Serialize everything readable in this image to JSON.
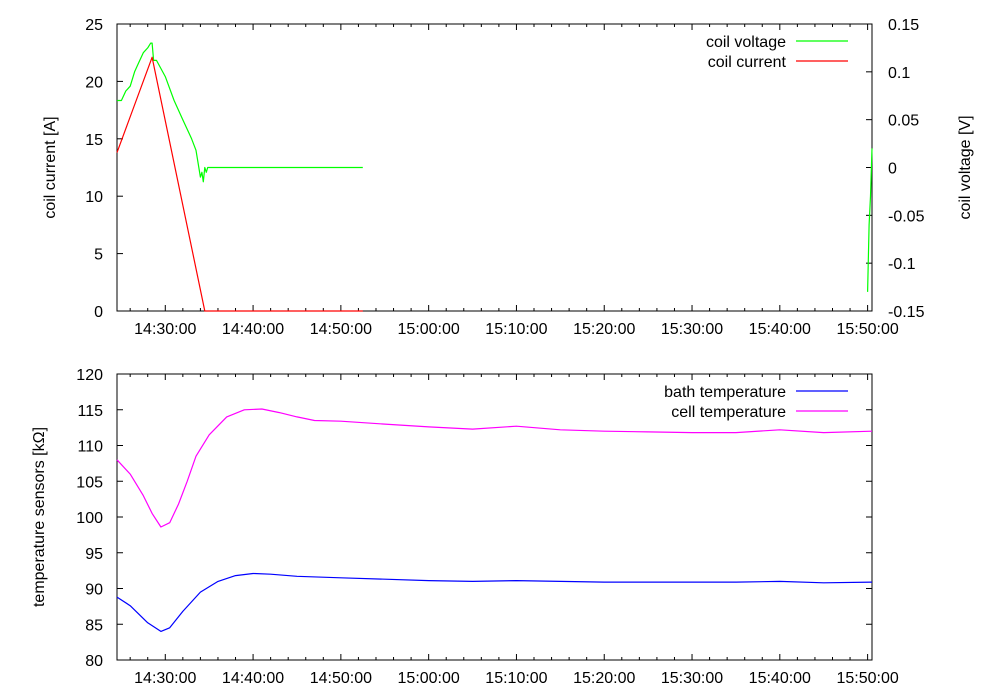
{
  "chart_data": [
    {
      "type": "line",
      "x_ticks": [
        "14:30:00",
        "14:40:00",
        "14:50:00",
        "15:00:00",
        "15:10:00",
        "15:20:00",
        "15:30:00",
        "15:40:00",
        "15:50:00"
      ],
      "xlim": [
        "14:24:30",
        "15:50:30"
      ],
      "ylabel": "coil current [A]",
      "ylim": [
        0,
        25
      ],
      "y_ticks": [
        0,
        5,
        10,
        15,
        20,
        25
      ],
      "y2label": "coil voltage [V]",
      "y2lim": [
        -0.15,
        0.15
      ],
      "y2_ticks": [
        "-0.15",
        "-0.1",
        "-0.05",
        "0",
        "0.05",
        "0.1",
        "0.15"
      ],
      "legend_position": "top-right",
      "series": [
        {
          "name": "coil voltage",
          "axis": "right",
          "color": "#00ff00",
          "x": [
            "14:24:30",
            "14:25:00",
            "14:25:30",
            "14:26:00",
            "14:26:30",
            "14:27:00",
            "14:27:30",
            "14:28:00",
            "14:28:20",
            "14:28:30",
            "14:28:40",
            "14:29:00",
            "14:30:00",
            "14:31:00",
            "14:32:00",
            "14:33:00",
            "14:33:30",
            "14:34:00",
            "14:34:10",
            "14:34:20",
            "14:34:30",
            "14:34:40",
            "14:34:50",
            "14:35:00",
            "14:45:00",
            "14:52:30"
          ],
          "y": [
            0.07,
            0.07,
            0.08,
            0.085,
            0.1,
            0.11,
            0.12,
            0.125,
            0.13,
            0.13,
            0.112,
            0.112,
            0.095,
            0.07,
            0.05,
            0.03,
            0.018,
            -0.01,
            -0.005,
            -0.015,
            0.0,
            -0.005,
            0.0,
            0.0,
            0.0,
            0.0
          ]
        },
        {
          "name": "coil voltage",
          "axis": "right",
          "color": "#00ff00",
          "x": [
            "15:50:00",
            "15:50:10",
            "15:50:20",
            "15:50:30"
          ],
          "y": [
            -0.13,
            -0.06,
            -0.03,
            0.02
          ]
        },
        {
          "name": "coil current",
          "axis": "left",
          "color": "#ff0000",
          "x": [
            "14:24:30",
            "14:28:30",
            "14:34:30",
            "14:52:30"
          ],
          "y": [
            13.8,
            22.1,
            0,
            0
          ]
        }
      ]
    },
    {
      "type": "line",
      "x_ticks": [
        "14:30:00",
        "14:40:00",
        "14:50:00",
        "15:00:00",
        "15:10:00",
        "15:20:00",
        "15:30:00",
        "15:40:00",
        "15:50:00"
      ],
      "xlim": [
        "14:24:30",
        "15:50:30"
      ],
      "ylabel": "temperature sensors [kΩ]",
      "ylim": [
        80,
        120
      ],
      "y_ticks": [
        80,
        85,
        90,
        95,
        100,
        105,
        110,
        115,
        120
      ],
      "legend_position": "top-right",
      "series": [
        {
          "name": "bath temperature",
          "color": "#0000ff",
          "x": [
            "14:24:30",
            "14:26:00",
            "14:28:00",
            "14:29:30",
            "14:30:30",
            "14:32:00",
            "14:34:00",
            "14:36:00",
            "14:38:00",
            "14:40:00",
            "14:42:00",
            "14:45:00",
            "14:50:00",
            "14:55:00",
            "15:00:00",
            "15:05:00",
            "15:10:00",
            "15:15:00",
            "15:20:00",
            "15:30:00",
            "15:35:00",
            "15:40:00",
            "15:45:00",
            "15:50:30"
          ],
          "y": [
            88.8,
            87.6,
            85.2,
            84.0,
            84.5,
            86.8,
            89.5,
            91.0,
            91.8,
            92.1,
            92.0,
            91.7,
            91.5,
            91.3,
            91.1,
            91.0,
            91.1,
            91.0,
            90.9,
            90.9,
            90.9,
            91.0,
            90.8,
            90.9
          ]
        },
        {
          "name": "cell temperature",
          "color": "#ff00ff",
          "x": [
            "14:24:30",
            "14:26:00",
            "14:27:30",
            "14:28:30",
            "14:29:30",
            "14:30:30",
            "14:31:30",
            "14:32:30",
            "14:33:30",
            "14:35:00",
            "14:37:00",
            "14:39:00",
            "14:41:00",
            "14:43:00",
            "14:45:00",
            "14:47:00",
            "14:50:00",
            "14:55:00",
            "15:00:00",
            "15:05:00",
            "15:10:00",
            "15:15:00",
            "15:20:00",
            "15:25:00",
            "15:30:00",
            "15:35:00",
            "15:40:00",
            "15:45:00",
            "15:50:30"
          ],
          "y": [
            108.0,
            106.0,
            103.0,
            100.5,
            98.6,
            99.2,
            101.8,
            105.0,
            108.5,
            111.5,
            114.0,
            115.0,
            115.1,
            114.6,
            114.0,
            113.5,
            113.4,
            113.0,
            112.6,
            112.3,
            112.7,
            112.2,
            112.0,
            111.9,
            111.8,
            111.8,
            112.2,
            111.8,
            112.0
          ]
        }
      ]
    }
  ]
}
